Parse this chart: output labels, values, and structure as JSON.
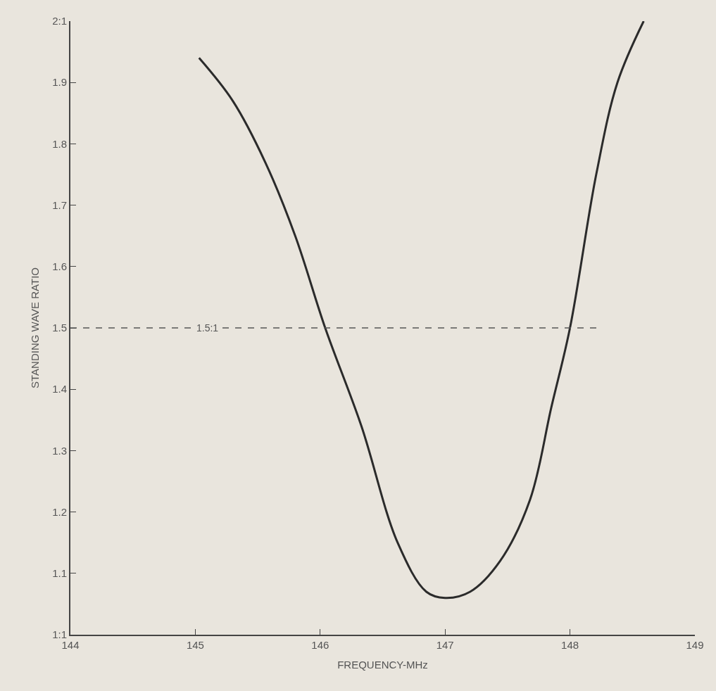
{
  "chart_data": {
    "type": "line",
    "xlabel": "FREQUENCY-MHz",
    "ylabel": "STANDING WAVE RATIO",
    "x": [
      145.03,
      145.3,
      145.56,
      145.8,
      146.04,
      146.33,
      146.62,
      146.85,
      147.0,
      147.2,
      147.44,
      147.68,
      147.85,
      148.0,
      148.21,
      148.38,
      148.59
    ],
    "series": [
      {
        "color": "#2b2b2b",
        "values": [
          1.94,
          1.87,
          1.77,
          1.65,
          1.5,
          1.34,
          1.15,
          1.07,
          1.06,
          1.07,
          1.12,
          1.22,
          1.37,
          1.5,
          1.75,
          1.9,
          2.0
        ]
      }
    ],
    "xlim": [
      144,
      149
    ],
    "xticks": [
      144,
      145,
      146,
      147,
      148,
      149
    ],
    "ylim": [
      1,
      2
    ],
    "yticks": [
      {
        "value": 1,
        "label": "1:1"
      },
      1.1,
      1.2,
      1.3,
      1.4,
      1.5,
      1.6,
      1.7,
      1.8,
      1.9,
      {
        "value": 2,
        "label": "2:1"
      }
    ],
    "ref_lines": [
      {
        "axis": "y",
        "value": 1.5,
        "label": "1.5:1",
        "line_style": "dashed",
        "color": "#555555"
      }
    ],
    "grid": false,
    "marker": "none",
    "line_style": "solid"
  }
}
